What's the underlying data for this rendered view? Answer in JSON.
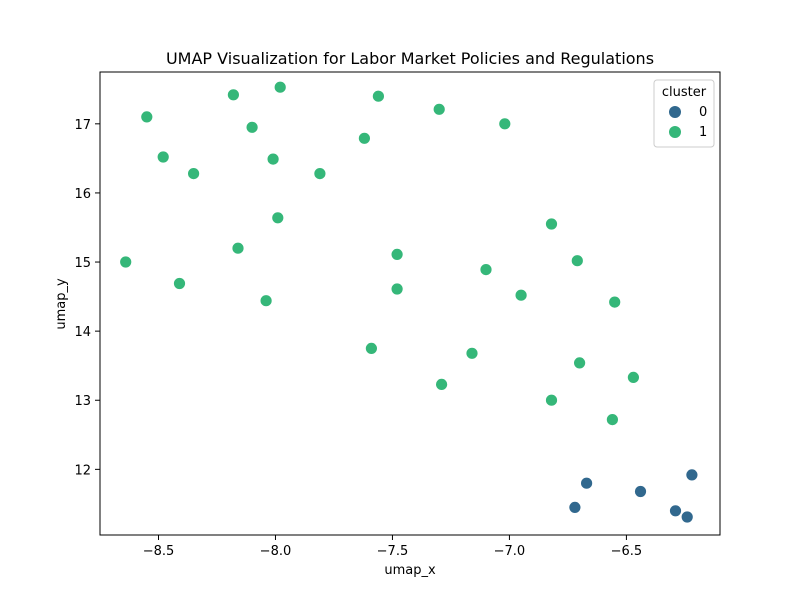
{
  "chart_data": {
    "type": "scatter",
    "title": "UMAP Visualization for Labor Market Policies and Regulations",
    "xlabel": "umap_x",
    "ylabel": "umap_y",
    "xlim": [
      -8.75,
      -6.1
    ],
    "ylim": [
      11.05,
      17.75
    ],
    "xticks": [
      -8.5,
      -8.0,
      -7.5,
      -7.0,
      -6.5
    ],
    "xtick_labels": [
      "−8.5",
      "−8.0",
      "−7.5",
      "−7.0",
      "−6.5"
    ],
    "yticks": [
      12,
      13,
      14,
      15,
      16,
      17
    ],
    "ytick_labels": [
      "12",
      "13",
      "14",
      "15",
      "16",
      "17"
    ],
    "grid": false,
    "legend": {
      "title": "cluster",
      "placement": "top-right"
    },
    "series": [
      {
        "name": "0",
        "color": "#31688e",
        "points": [
          {
            "x": -6.67,
            "y": 11.8
          },
          {
            "x": -6.72,
            "y": 11.45
          },
          {
            "x": -6.44,
            "y": 11.68
          },
          {
            "x": -6.22,
            "y": 11.92
          },
          {
            "x": -6.29,
            "y": 11.4
          },
          {
            "x": -6.24,
            "y": 11.31
          }
        ]
      },
      {
        "name": "1",
        "color": "#35b779",
        "points": [
          {
            "x": -8.55,
            "y": 17.1
          },
          {
            "x": -8.48,
            "y": 16.52
          },
          {
            "x": -8.35,
            "y": 16.28
          },
          {
            "x": -8.18,
            "y": 17.42
          },
          {
            "x": -8.1,
            "y": 16.95
          },
          {
            "x": -7.98,
            "y": 17.53
          },
          {
            "x": -8.01,
            "y": 16.49
          },
          {
            "x": -7.81,
            "y": 16.28
          },
          {
            "x": -7.56,
            "y": 17.4
          },
          {
            "x": -7.62,
            "y": 16.79
          },
          {
            "x": -7.3,
            "y": 17.21
          },
          {
            "x": -7.02,
            "y": 17.0
          },
          {
            "x": -7.99,
            "y": 15.64
          },
          {
            "x": -8.16,
            "y": 15.2
          },
          {
            "x": -8.64,
            "y": 15.0
          },
          {
            "x": -8.41,
            "y": 14.69
          },
          {
            "x": -8.04,
            "y": 14.44
          },
          {
            "x": -7.48,
            "y": 15.11
          },
          {
            "x": -7.48,
            "y": 14.61
          },
          {
            "x": -7.1,
            "y": 14.89
          },
          {
            "x": -6.95,
            "y": 14.52
          },
          {
            "x": -6.82,
            "y": 15.55
          },
          {
            "x": -6.71,
            "y": 15.02
          },
          {
            "x": -6.55,
            "y": 14.42
          },
          {
            "x": -7.59,
            "y": 13.75
          },
          {
            "x": -7.16,
            "y": 13.68
          },
          {
            "x": -7.29,
            "y": 13.23
          },
          {
            "x": -6.7,
            "y": 13.54
          },
          {
            "x": -6.47,
            "y": 13.33
          },
          {
            "x": -6.82,
            "y": 13.0
          },
          {
            "x": -6.56,
            "y": 12.72
          }
        ]
      }
    ]
  }
}
